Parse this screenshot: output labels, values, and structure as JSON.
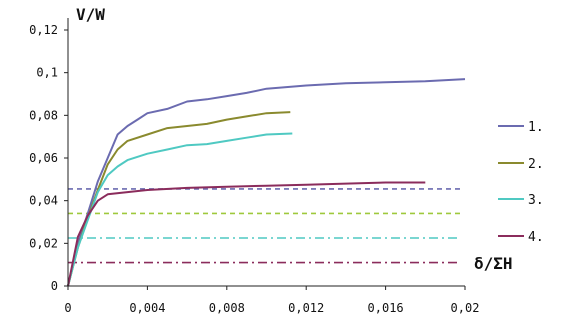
{
  "chart_data": {
    "type": "line",
    "title": "",
    "xlabel": "δ/ΣH",
    "ylabel": "V/W",
    "xlim": [
      0,
      0.02
    ],
    "ylim": [
      0,
      0.12
    ],
    "x_ticks": [
      "0",
      "0,004",
      "0,008",
      "0,012",
      "0,016",
      "0,02"
    ],
    "x_tick_values": [
      0,
      0.004,
      0.008,
      0.012,
      0.016,
      0.02
    ],
    "y_ticks": [
      "0",
      "0,02",
      "0,04",
      "0,06",
      "0,08",
      "0,1",
      "0,12"
    ],
    "y_tick_values": [
      0,
      0.02,
      0.04,
      0.06,
      0.08,
      0.1,
      0.12
    ],
    "grid": false,
    "legend_position": "right",
    "series": [
      {
        "name": "1.",
        "color": "#6b6bb0",
        "x": [
          0,
          0.0005,
          0.001,
          0.0015,
          0.002,
          0.0025,
          0.003,
          0.0035,
          0.004,
          0.005,
          0.006,
          0.007,
          0.008,
          0.009,
          0.01,
          0.012,
          0.014,
          0.016,
          0.018,
          0.02
        ],
        "y": [
          0,
          0.02,
          0.034,
          0.049,
          0.06,
          0.071,
          0.075,
          0.078,
          0.081,
          0.083,
          0.0865,
          0.0875,
          0.089,
          0.0905,
          0.0925,
          0.094,
          0.095,
          0.0955,
          0.096,
          0.097
        ]
      },
      {
        "name": "2.",
        "color": "#8a8a2e",
        "x": [
          0,
          0.0005,
          0.001,
          0.0015,
          0.002,
          0.0025,
          0.003,
          0.004,
          0.005,
          0.006,
          0.007,
          0.008,
          0.009,
          0.01,
          0.0112
        ],
        "y": [
          0,
          0.018,
          0.032,
          0.045,
          0.057,
          0.064,
          0.068,
          0.071,
          0.074,
          0.075,
          0.076,
          0.078,
          0.0795,
          0.081,
          0.0815
        ]
      },
      {
        "name": "3.",
        "color": "#4fc9c2",
        "x": [
          0,
          0.0005,
          0.001,
          0.0015,
          0.002,
          0.0025,
          0.003,
          0.004,
          0.005,
          0.006,
          0.007,
          0.008,
          0.009,
          0.01,
          0.0113
        ],
        "y": [
          0,
          0.018,
          0.031,
          0.044,
          0.052,
          0.056,
          0.059,
          0.062,
          0.064,
          0.066,
          0.0665,
          0.068,
          0.0695,
          0.071,
          0.0715
        ]
      },
      {
        "name": "4.",
        "color": "#8b2c5c",
        "x": [
          0,
          0.0005,
          0.001,
          0.0015,
          0.002,
          0.003,
          0.004,
          0.006,
          0.008,
          0.01,
          0.012,
          0.014,
          0.016,
          0.018
        ],
        "y": [
          0,
          0.023,
          0.033,
          0.04,
          0.043,
          0.044,
          0.045,
          0.046,
          0.0465,
          0.047,
          0.0475,
          0.048,
          0.0485,
          0.0485
        ]
      }
    ],
    "reference_lines": [
      {
        "y": 0.0455,
        "color": "#6b6bb0",
        "style": "dashed"
      },
      {
        "y": 0.034,
        "color": "#9fc93c",
        "style": "dashed"
      },
      {
        "y": 0.0225,
        "color": "#4fc9c2",
        "style": "dash-dot"
      },
      {
        "y": 0.011,
        "color": "#8b2c5c",
        "style": "dash-dot"
      }
    ]
  }
}
